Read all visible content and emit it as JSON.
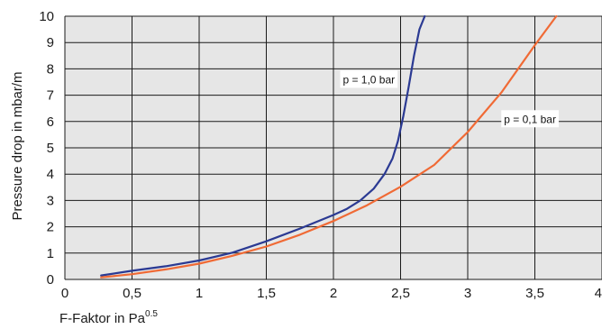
{
  "chart_data": {
    "type": "line",
    "title": "",
    "xlabel": "F-Faktor in Pa",
    "xlabel_superscript": "0.5",
    "ylabel": "Pressure drop in mbar/m",
    "xlim": [
      0,
      4
    ],
    "ylim": [
      0,
      10
    ],
    "x_ticks": [
      0,
      0.5,
      1,
      1.5,
      2,
      2.5,
      3,
      3.5,
      4
    ],
    "x_tick_labels": [
      "0",
      "0,5",
      "1",
      "1,5",
      "2",
      "2,5",
      "3",
      "3,5",
      "4"
    ],
    "y_ticks": [
      0,
      1,
      2,
      3,
      4,
      5,
      6,
      7,
      8,
      9,
      10
    ],
    "y_tick_labels": [
      "0",
      "1",
      "2",
      "3",
      "4",
      "5",
      "6",
      "7",
      "8",
      "9",
      "10"
    ],
    "grid": true,
    "plot_background": "#e6e6e6",
    "grid_color": "#1a1a1a",
    "series": [
      {
        "name": "p = 1,0 bar",
        "color": "#2b3a93",
        "points": [
          [
            0.27,
            0.15
          ],
          [
            0.5,
            0.33
          ],
          [
            0.75,
            0.5
          ],
          [
            1.0,
            0.72
          ],
          [
            1.25,
            1.02
          ],
          [
            1.5,
            1.45
          ],
          [
            1.75,
            1.93
          ],
          [
            2.0,
            2.45
          ],
          [
            2.1,
            2.68
          ],
          [
            2.2,
            3.0
          ],
          [
            2.3,
            3.45
          ],
          [
            2.38,
            4.0
          ],
          [
            2.44,
            4.6
          ],
          [
            2.48,
            5.25
          ],
          [
            2.52,
            6.2
          ],
          [
            2.56,
            7.3
          ],
          [
            2.6,
            8.5
          ],
          [
            2.64,
            9.5
          ],
          [
            2.68,
            10.0
          ]
        ]
      },
      {
        "name": "p = 0,1 bar",
        "color": "#f06a35",
        "points": [
          [
            0.27,
            0.08
          ],
          [
            0.5,
            0.2
          ],
          [
            0.75,
            0.38
          ],
          [
            1.0,
            0.6
          ],
          [
            1.25,
            0.9
          ],
          [
            1.5,
            1.25
          ],
          [
            1.75,
            1.7
          ],
          [
            2.0,
            2.22
          ],
          [
            2.25,
            2.82
          ],
          [
            2.5,
            3.52
          ],
          [
            2.75,
            4.35
          ],
          [
            3.0,
            5.6
          ],
          [
            3.25,
            7.1
          ],
          [
            3.5,
            8.9
          ],
          [
            3.66,
            10.0
          ]
        ]
      }
    ],
    "annotations": [
      {
        "text": "p = 1,0 bar",
        "x": 2.05,
        "y": 7.45
      },
      {
        "text": "p = 0,1 bar",
        "x": 3.25,
        "y": 5.95
      }
    ]
  }
}
